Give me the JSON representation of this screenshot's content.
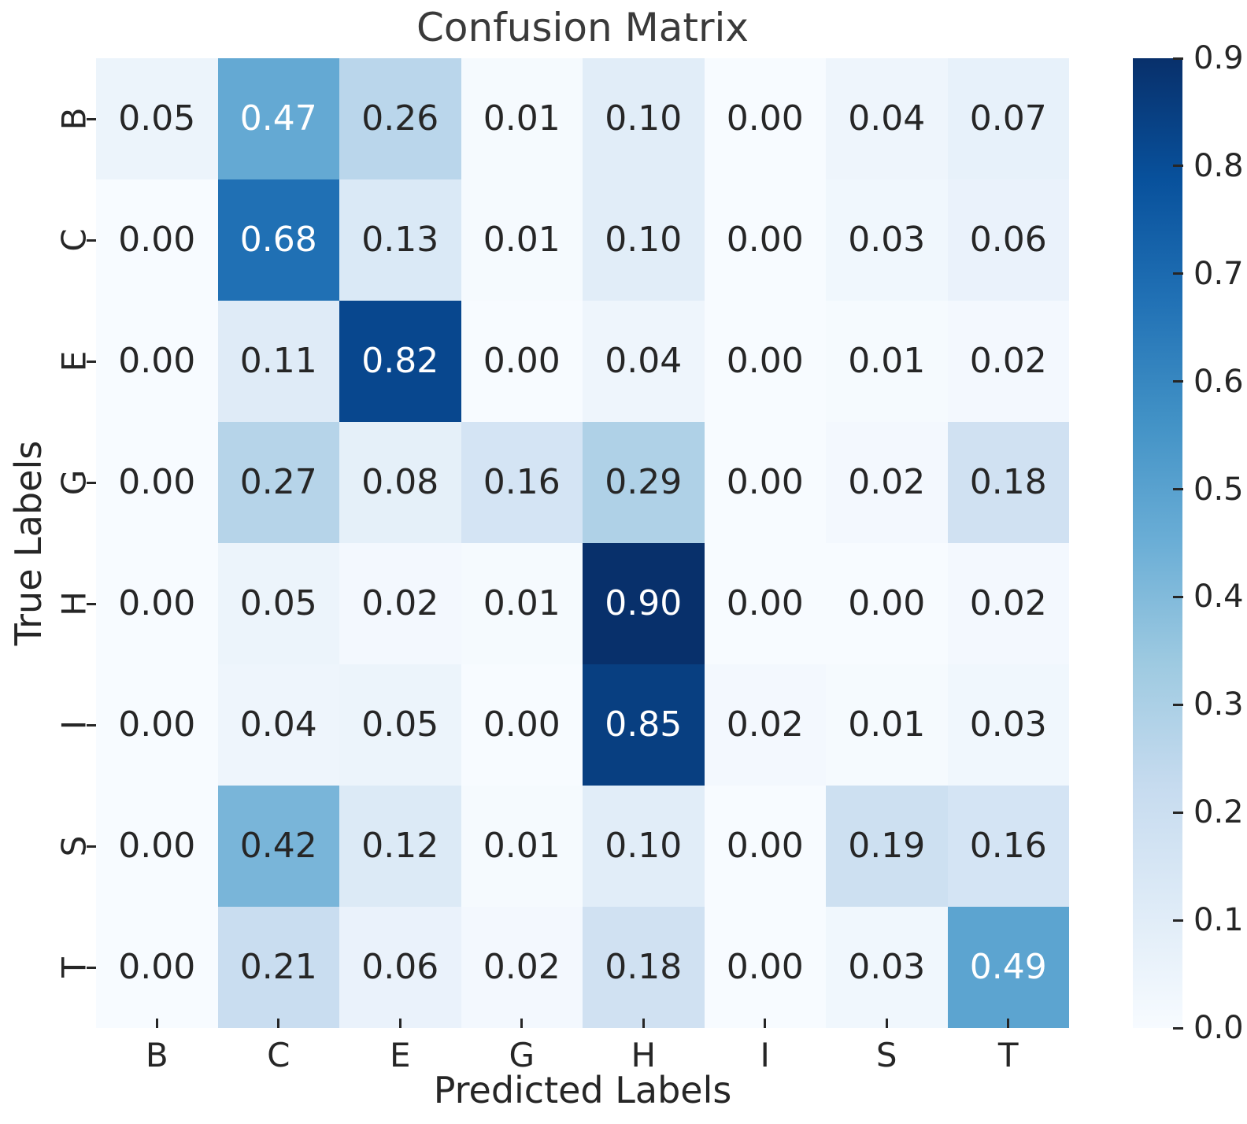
{
  "chart_data": {
    "type": "heatmap",
    "title": "Confusion Matrix",
    "xlabel": "Predicted Labels",
    "ylabel": "True Labels",
    "x_categories": [
      "B",
      "C",
      "E",
      "G",
      "H",
      "I",
      "S",
      "T"
    ],
    "y_categories": [
      "B",
      "C",
      "E",
      "G",
      "H",
      "I",
      "S",
      "T"
    ],
    "matrix": [
      [
        0.05,
        0.47,
        0.26,
        0.01,
        0.1,
        0.0,
        0.04,
        0.07
      ],
      [
        0.0,
        0.68,
        0.13,
        0.01,
        0.1,
        0.0,
        0.03,
        0.06
      ],
      [
        0.0,
        0.11,
        0.82,
        0.0,
        0.04,
        0.0,
        0.01,
        0.02
      ],
      [
        0.0,
        0.27,
        0.08,
        0.16,
        0.29,
        0.0,
        0.02,
        0.18
      ],
      [
        0.0,
        0.05,
        0.02,
        0.01,
        0.9,
        0.0,
        0.0,
        0.02
      ],
      [
        0.0,
        0.04,
        0.05,
        0.0,
        0.85,
        0.02,
        0.01,
        0.03
      ],
      [
        0.0,
        0.42,
        0.12,
        0.01,
        0.1,
        0.0,
        0.19,
        0.16
      ],
      [
        0.0,
        0.21,
        0.06,
        0.02,
        0.18,
        0.0,
        0.03,
        0.49
      ]
    ],
    "value_decimals": 2,
    "vmin": 0.0,
    "vmax": 0.9,
    "colormap": "Blues",
    "colorbar_ticks": [
      0.0,
      0.1,
      0.2,
      0.3,
      0.4,
      0.5,
      0.6,
      0.7,
      0.8,
      0.9
    ],
    "colorbar_position": "right",
    "grid": false,
    "colors": {
      "cmap_anchors": [
        "#f7fbff",
        "#deebf7",
        "#c6dbef",
        "#9ecae1",
        "#6baed6",
        "#4292c6",
        "#2171b5",
        "#08519c",
        "#08306b"
      ],
      "annotation_dark": "#262626",
      "annotation_light": "#ffffff",
      "tick_color": "#262626",
      "background": "#ffffff"
    }
  }
}
